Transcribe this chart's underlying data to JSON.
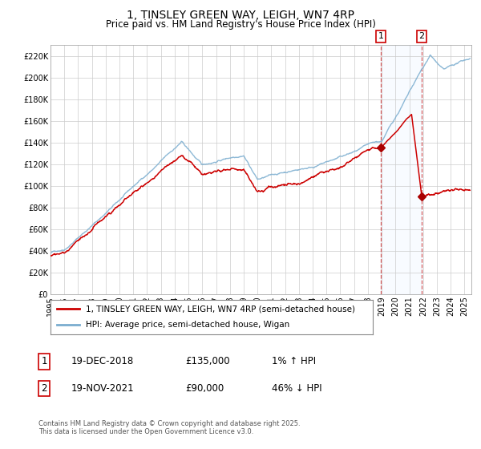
{
  "title": "1, TINSLEY GREEN WAY, LEIGH, WN7 4RP",
  "subtitle": "Price paid vs. HM Land Registry's House Price Index (HPI)",
  "ylim": [
    0,
    230000
  ],
  "xlim_start": 1995.0,
  "xlim_end": 2025.5,
  "yticks": [
    0,
    20000,
    40000,
    60000,
    80000,
    100000,
    120000,
    140000,
    160000,
    180000,
    200000,
    220000
  ],
  "ytick_labels": [
    "£0",
    "£20K",
    "£40K",
    "£60K",
    "£80K",
    "£100K",
    "£120K",
    "£140K",
    "£160K",
    "£180K",
    "£200K",
    "£220K"
  ],
  "xtick_years": [
    1995,
    1996,
    1997,
    1998,
    1999,
    2000,
    2001,
    2002,
    2003,
    2004,
    2005,
    2006,
    2007,
    2008,
    2009,
    2010,
    2011,
    2012,
    2013,
    2014,
    2015,
    2016,
    2017,
    2018,
    2019,
    2020,
    2021,
    2022,
    2023,
    2024,
    2025
  ],
  "transaction1_date": 2018.96,
  "transaction1_value": 135000,
  "transaction1_label": "1",
  "transaction1_date_str": "19-DEC-2018",
  "transaction1_pct": "1% ↑ HPI",
  "transaction2_date": 2021.89,
  "transaction2_value": 90000,
  "transaction2_label": "2",
  "transaction2_date_str": "19-NOV-2021",
  "transaction2_pct": "46% ↓ HPI",
  "red_line_color": "#cc0000",
  "blue_line_color": "#7aadcf",
  "background_color": "#ffffff",
  "plot_background": "#ffffff",
  "grid_color": "#cccccc",
  "shade_color": "#ddeeff",
  "dashed_line_color": "#cc3333",
  "marker_color": "#aa0000",
  "legend_label1": "1, TINSLEY GREEN WAY, LEIGH, WN7 4RP (semi-detached house)",
  "legend_label2": "HPI: Average price, semi-detached house, Wigan",
  "footer": "Contains HM Land Registry data © Crown copyright and database right 2025.\nThis data is licensed under the Open Government Licence v3.0.",
  "title_fontsize": 10,
  "subtitle_fontsize": 8.5,
  "tick_fontsize": 7,
  "legend_fontsize": 7.5,
  "footer_fontsize": 6
}
